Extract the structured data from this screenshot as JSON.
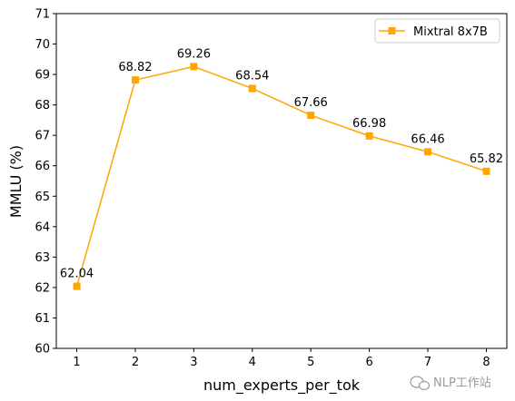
{
  "chart_data": {
    "type": "line",
    "title": "",
    "xlabel": "num_experts_per_tok",
    "ylabel": "MMLU (%)",
    "x": [
      1,
      2,
      3,
      4,
      5,
      6,
      7,
      8
    ],
    "xlim": [
      0.65,
      8.35
    ],
    "ylim": [
      60,
      71
    ],
    "xticks": [
      "1",
      "2",
      "3",
      "4",
      "5",
      "6",
      "7",
      "8"
    ],
    "yticks": [
      "60",
      "61",
      "62",
      "63",
      "64",
      "65",
      "66",
      "67",
      "68",
      "69",
      "70",
      "71"
    ],
    "series": [
      {
        "name": "Mixtral 8x7B",
        "color": "#FFA500",
        "marker": "square",
        "values": [
          62.04,
          68.82,
          69.26,
          68.54,
          67.66,
          66.98,
          66.46,
          65.82
        ],
        "labels": [
          "62.04",
          "68.82",
          "69.26",
          "68.54",
          "67.66",
          "66.98",
          "66.46",
          "65.82"
        ]
      }
    ],
    "grid": false,
    "legend_position": "top-right"
  },
  "watermark": {
    "text": "NLP工作站",
    "icon": "wechat-icon"
  }
}
